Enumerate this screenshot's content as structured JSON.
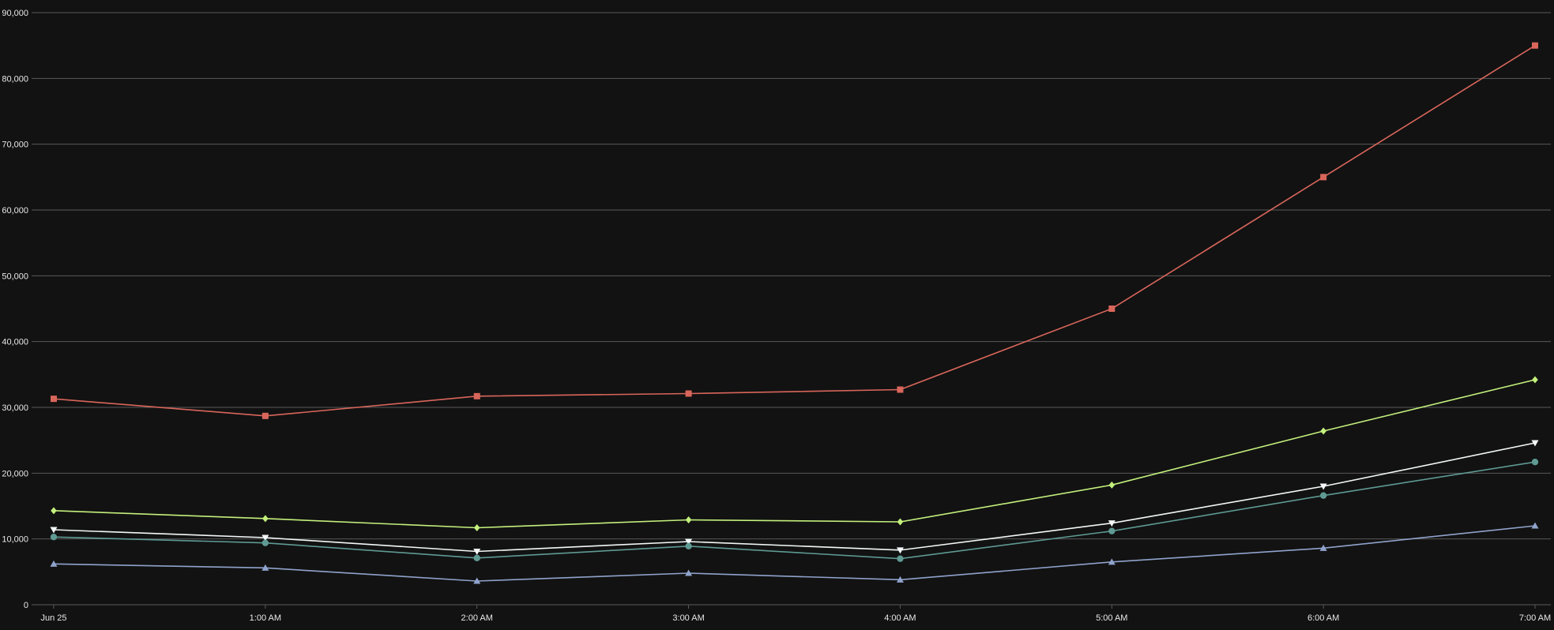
{
  "chart_data": {
    "type": "line",
    "title": "",
    "xlabel": "",
    "ylabel": "",
    "categories": [
      "Jun 25",
      "1:00 AM",
      "2:00 AM",
      "3:00 AM",
      "4:00 AM",
      "5:00 AM",
      "6:00 AM",
      "7:00 AM"
    ],
    "ylim": [
      0,
      90000
    ],
    "yticks": [
      "0",
      "10,000",
      "20,000",
      "30,000",
      "40,000",
      "50,000",
      "60,000",
      "70,000",
      "80,000",
      "90,000"
    ],
    "grid": true,
    "legend": "none",
    "series": [
      {
        "color": "#d9665b",
        "marker": "square",
        "values": [
          31300,
          28700,
          31700,
          32100,
          32700,
          45000,
          65000,
          85000
        ]
      },
      {
        "color": "#c3f07c",
        "marker": "diamond",
        "values": [
          14300,
          13100,
          11700,
          12900,
          12600,
          18200,
          26400,
          34200
        ]
      },
      {
        "color": "#f4f8f8",
        "marker": "triangle-down",
        "values": [
          11400,
          10200,
          8100,
          9600,
          8300,
          12400,
          18000,
          24600
        ]
      },
      {
        "color": "#5f9a93",
        "marker": "circle",
        "values": [
          10300,
          9400,
          7100,
          8900,
          7000,
          11200,
          16600,
          21700
        ]
      },
      {
        "color": "#8fa3cc",
        "marker": "triangle-up",
        "values": [
          6200,
          5600,
          3600,
          4800,
          3800,
          6500,
          8600,
          12000
        ]
      }
    ]
  }
}
